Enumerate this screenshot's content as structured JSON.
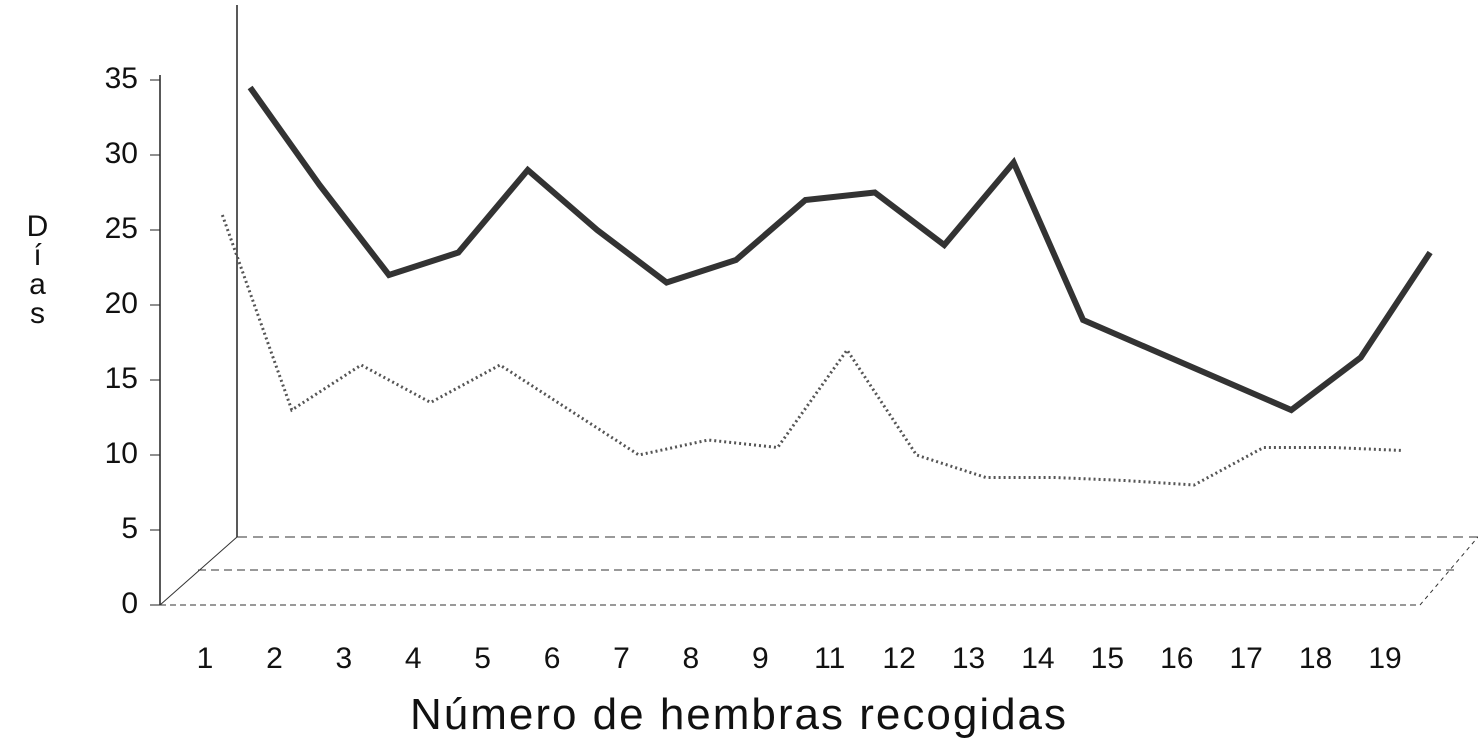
{
  "chart_data": {
    "type": "line",
    "categories": [
      "1",
      "2",
      "3",
      "4",
      "5",
      "6",
      "7",
      "8",
      "9",
      "11",
      "12",
      "13",
      "14",
      "15",
      "16",
      "17",
      "18",
      "19"
    ],
    "series": [
      {
        "color": "#333333",
        "values": [
          34.5,
          28,
          22,
          23.5,
          29,
          25,
          21.5,
          23,
          27,
          27.5,
          24,
          29.5,
          19,
          17,
          15,
          13,
          16.5,
          23.5
        ]
      },
      {
        "color": "#555555",
        "values": [
          26,
          13,
          16,
          13.5,
          16,
          13,
          10,
          11,
          10.5,
          17,
          10,
          8.5,
          8.5,
          8.3,
          8,
          10.5,
          10.5,
          10.3
        ]
      }
    ],
    "ylim": [
      0,
      35
    ],
    "yticks": [
      0,
      5,
      10,
      15,
      20,
      25,
      30,
      35
    ],
    "ylabel": "Días",
    "xlabel": "Número de hembras recogidas"
  }
}
